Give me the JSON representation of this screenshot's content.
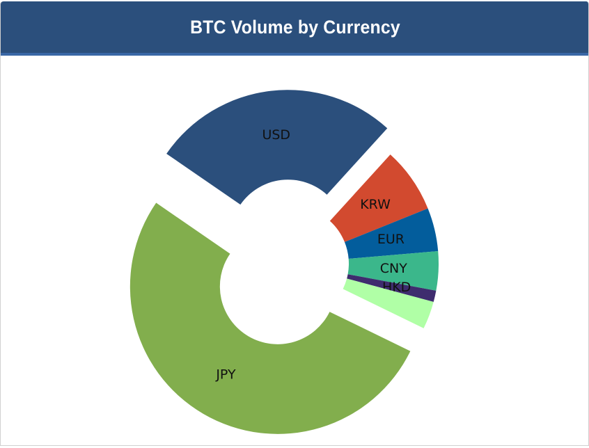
{
  "header": {
    "title": "BTC Volume by Currency",
    "background": "#2b4f7c"
  },
  "chart_data": {
    "type": "pie",
    "title": "BTC Volume by Currency",
    "donut": true,
    "exploded": [
      "USD",
      "JPY"
    ],
    "labels": [
      "JPY",
      "USD",
      "KRW",
      "EUR",
      "CNY",
      "HKD",
      ""
    ],
    "values": [
      55.0,
      28.5,
      7.5,
      5.0,
      4.5,
      1.3,
      3.2
    ],
    "colors": [
      "#82ae4d",
      "#2b4f7c",
      "#d24a2f",
      "#035d9c",
      "#3bb78b",
      "#3e2c6e",
      "#b0ffa6"
    ]
  }
}
